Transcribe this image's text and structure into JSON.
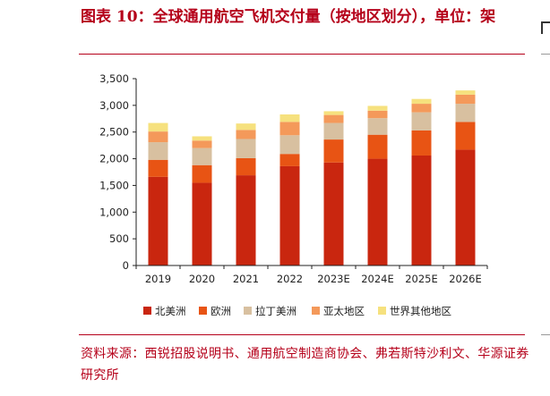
{
  "title": "图表 10：全球通用航空飞机交付量（按地区划分），单位：架",
  "source": "资料来源：西锐招股说明书、通用航空制造商协会、弗若斯特沙利文、华源证券研究所",
  "colors": {
    "title": "#b5001a",
    "北美洲": "#c9260f",
    "欧洲": "#e85414",
    "拉丁美洲": "#d8c0a0",
    "亚太地区": "#f4995a",
    "世界其他地区": "#f6e17e"
  },
  "chart_data": {
    "type": "bar",
    "stacked": true,
    "categories": [
      "2019",
      "2020",
      "2021",
      "2022",
      "2023E",
      "2024E",
      "2025E",
      "2026E"
    ],
    "y_ticks": [
      "0",
      "500",
      "1,000",
      "1,500",
      "2,000",
      "2,500",
      "3,000",
      "3,500"
    ],
    "ylim": [
      0,
      3500
    ],
    "legend_position": "bottom",
    "series": [
      {
        "name": "北美洲",
        "values": [
          1660,
          1550,
          1690,
          1860,
          1930,
          2000,
          2060,
          2170
        ]
      },
      {
        "name": "欧洲",
        "values": [
          320,
          330,
          320,
          230,
          430,
          450,
          470,
          520
        ]
      },
      {
        "name": "拉丁美洲",
        "values": [
          330,
          320,
          360,
          350,
          310,
          310,
          340,
          340
        ]
      },
      {
        "name": "亚太地区",
        "values": [
          200,
          140,
          170,
          250,
          150,
          140,
          160,
          170
        ]
      },
      {
        "name": "世界其他地区",
        "values": [
          160,
          80,
          120,
          140,
          70,
          90,
          90,
          80
        ]
      }
    ]
  }
}
